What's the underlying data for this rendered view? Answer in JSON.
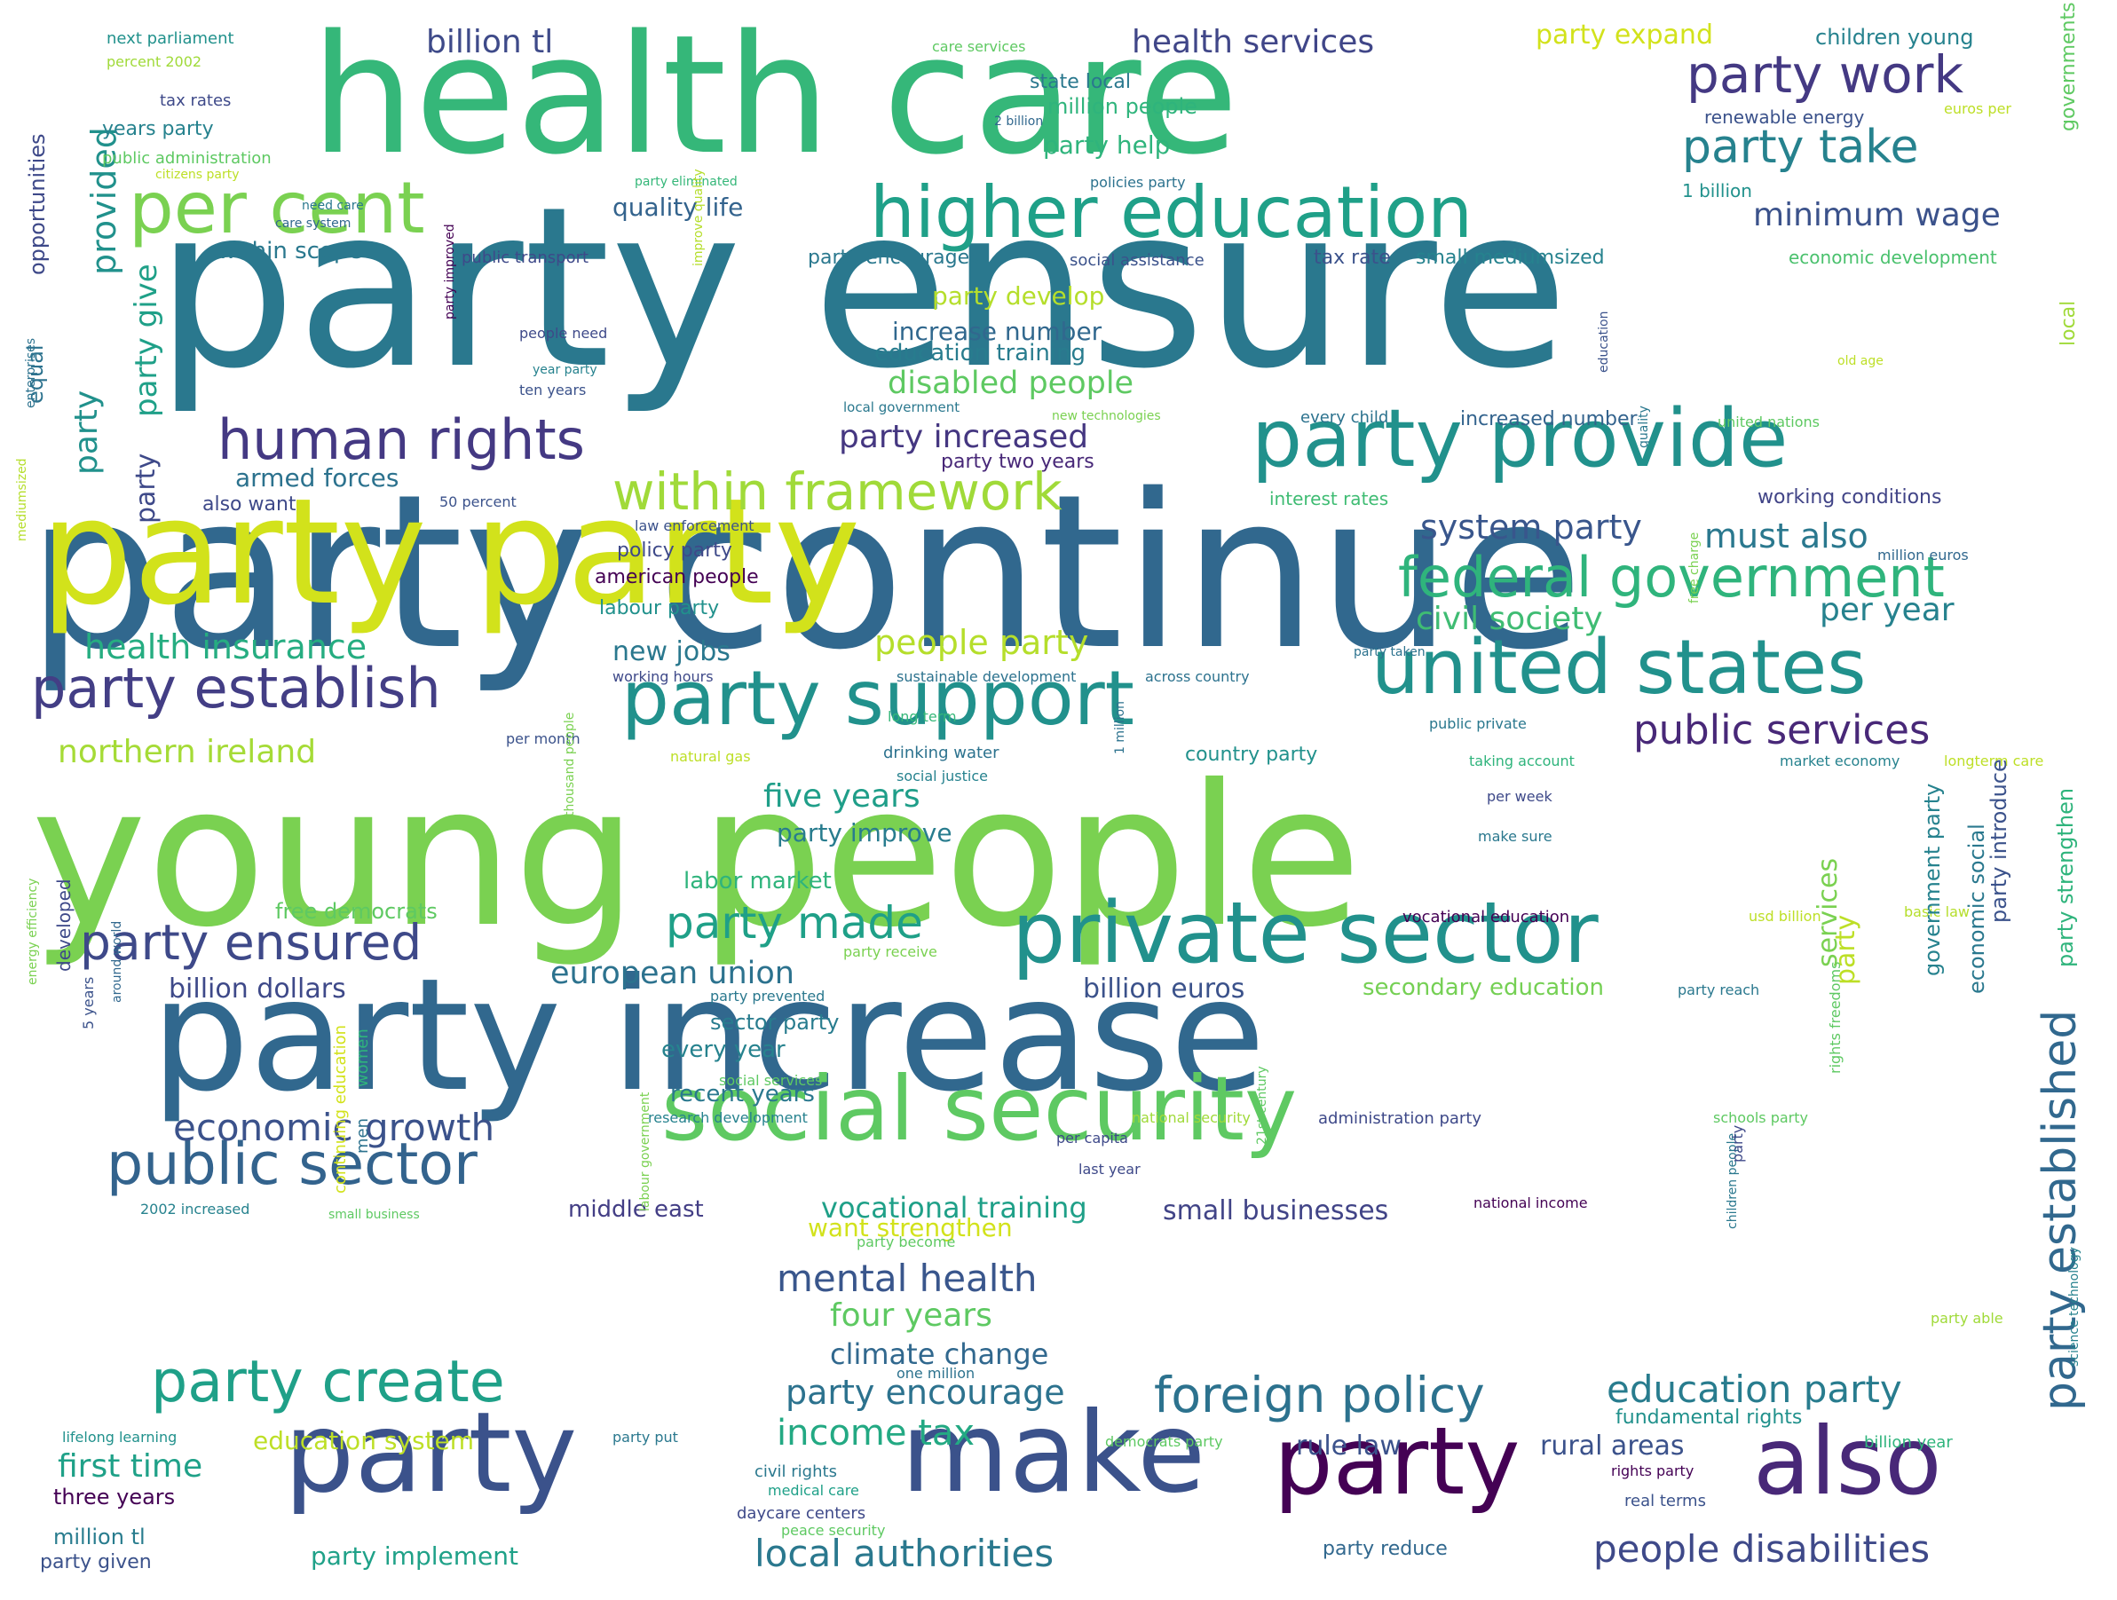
{
  "words": [
    {
      "text": "party ensure",
      "weight": 100,
      "color": "#2a788e"
    },
    {
      "text": "party continue",
      "weight": 96,
      "color": "#31688e"
    },
    {
      "text": "young people",
      "weight": 95,
      "color": "#7ad151"
    },
    {
      "text": "health care",
      "weight": 85,
      "color": "#35b779"
    },
    {
      "text": "party party",
      "weight": 83,
      "color": "#d2e21b"
    },
    {
      "text": "party increase",
      "weight": 82,
      "color": "#31688e"
    },
    {
      "text": "make",
      "weight": 60,
      "color": "#3b528b"
    },
    {
      "text": "party",
      "weight": 58,
      "color": "#3b528b"
    },
    {
      "text": "party",
      "weight": 55,
      "color": "#440154"
    },
    {
      "text": "also",
      "weight": 55,
      "color": "#482878"
    },
    {
      "text": "social security",
      "weight": 50,
      "color": "#5ec962"
    },
    {
      "text": "private sector",
      "weight": 48,
      "color": "#21918c"
    },
    {
      "text": "party provide",
      "weight": 47,
      "color": "#21918c"
    },
    {
      "text": "party support",
      "weight": 47,
      "color": "#21918c"
    },
    {
      "text": "united states",
      "weight": 46,
      "color": "#21918c"
    },
    {
      "text": "higher education",
      "weight": 42,
      "color": "#1fa088"
    },
    {
      "text": "per cent",
      "weight": 42,
      "color": "#7ad151"
    },
    {
      "text": "public sector",
      "weight": 34,
      "color": "#33638d"
    },
    {
      "text": "party create",
      "weight": 33,
      "color": "#1fa088"
    },
    {
      "text": "human rights",
      "weight": 33,
      "color": "#443983"
    },
    {
      "text": "party establish",
      "weight": 33,
      "color": "#433e85"
    },
    {
      "text": "party ensured",
      "weight": 30,
      "color": "#3e4989"
    },
    {
      "text": "within framework",
      "weight": 30,
      "color": "#a0da39"
    },
    {
      "text": "federal government",
      "weight": 30,
      "color": "#2fb47c"
    },
    {
      "text": "party work",
      "weight": 28,
      "color": "#443983"
    },
    {
      "text": "foreign policy",
      "weight": 28,
      "color": "#2c728e"
    },
    {
      "text": "party take",
      "weight": 27,
      "color": "#26828e"
    },
    {
      "text": "party made",
      "weight": 26,
      "color": "#1fa088"
    },
    {
      "text": "party established",
      "weight": 26,
      "color": "#31688e"
    },
    {
      "text": "public services",
      "weight": 26,
      "color": "#482878"
    },
    {
      "text": "economic growth",
      "weight": 24,
      "color": "#3b528b"
    },
    {
      "text": "mental health",
      "weight": 22,
      "color": "#39568c"
    },
    {
      "text": "local authorities",
      "weight": 22,
      "color": "#2a788e"
    },
    {
      "text": "education party",
      "weight": 22,
      "color": "#287c8e"
    },
    {
      "text": "people disabilities",
      "weight": 22,
      "color": "#3e4989"
    },
    {
      "text": "income tax",
      "weight": 21,
      "color": "#23a983"
    },
    {
      "text": "party encourage",
      "weight": 20,
      "color": "#2c728e"
    },
    {
      "text": "people party",
      "weight": 20,
      "color": "#b5de2b"
    },
    {
      "text": "must also",
      "weight": 20,
      "color": "#2a788e"
    },
    {
      "text": "health insurance",
      "weight": 20,
      "color": "#26ad81"
    },
    {
      "text": "system party",
      "weight": 19,
      "color": "#39568c"
    },
    {
      "text": "five years",
      "weight": 19,
      "color": "#1f9e89"
    },
    {
      "text": "four years",
      "weight": 19,
      "color": "#5ec962"
    },
    {
      "text": "civil society",
      "weight": 19,
      "color": "#3fbc73"
    },
    {
      "text": "northern ireland",
      "weight": 19,
      "color": "#a5db36"
    },
    {
      "text": "european union",
      "weight": 18,
      "color": "#2c728e"
    },
    {
      "text": "disabled people",
      "weight": 18,
      "color": "#5ec962"
    },
    {
      "text": "party increased",
      "weight": 18,
      "color": "#453781"
    },
    {
      "text": "billion tl",
      "weight": 18,
      "color": "#3e4a89"
    },
    {
      "text": "health services",
      "weight": 18,
      "color": "#404688"
    },
    {
      "text": "minimum wage",
      "weight": 18,
      "color": "#3b528b"
    },
    {
      "text": "per year",
      "weight": 18,
      "color": "#26828e"
    },
    {
      "text": "first time",
      "weight": 18,
      "color": "#1fa188"
    },
    {
      "text": "climate change",
      "weight": 16,
      "color": "#31688e"
    },
    {
      "text": "vocational training",
      "weight": 16,
      "color": "#1fa088"
    },
    {
      "text": "billion euros",
      "weight": 16,
      "color": "#3b528b"
    },
    {
      "text": "billion dollars",
      "weight": 15,
      "color": "#3e4989"
    },
    {
      "text": "small businesses",
      "weight": 15,
      "color": "#414487"
    },
    {
      "text": "rural areas",
      "weight": 15,
      "color": "#3b528b"
    },
    {
      "text": "rule law",
      "weight": 15,
      "color": "#3b528b"
    },
    {
      "text": "new jobs",
      "weight": 15,
      "color": "#2a788e"
    },
    {
      "text": "armed forces",
      "weight": 14,
      "color": "#2c728e"
    },
    {
      "text": "quality life",
      "weight": 14,
      "color": "#33638d"
    },
    {
      "text": "party expand",
      "weight": 14,
      "color": "#d2e21b"
    },
    {
      "text": "children young",
      "weight": 13,
      "color": "#26828e"
    },
    {
      "text": "party help",
      "weight": 13,
      "color": "#2fb47c"
    },
    {
      "text": "party develop",
      "weight": 13,
      "color": "#b5de2b"
    },
    {
      "text": "increase number",
      "weight": 13,
      "color": "#31688e"
    },
    {
      "text": "education training",
      "weight": 13,
      "color": "#287c8e"
    },
    {
      "text": "party give",
      "weight": 14,
      "color": "#1fa088"
    },
    {
      "text": "party",
      "weight": 14,
      "color": "#21918c"
    },
    {
      "text": "party",
      "weight": 13,
      "color": "#3e4989"
    },
    {
      "text": "provided",
      "weight": 16,
      "color": "#21918c"
    },
    {
      "text": "equal",
      "weight": 12,
      "color": "#2c728e"
    },
    {
      "text": "opportunities",
      "weight": 12,
      "color": "#3e4989"
    },
    {
      "text": "party improve",
      "weight": 13,
      "color": "#287c8e"
    },
    {
      "text": "labor market",
      "weight": 12,
      "color": "#2fb47c"
    },
    {
      "text": "free democrats",
      "weight": 11,
      "color": "#5ec962"
    },
    {
      "text": "middle east",
      "weight": 12,
      "color": "#433e85"
    },
    {
      "text": "want strengthen",
      "weight": 13,
      "color": "#d2e21b"
    },
    {
      "text": "secondary education",
      "weight": 12,
      "color": "#75d054"
    },
    {
      "text": "every year",
      "weight": 12,
      "color": "#26828e"
    },
    {
      "text": "recent years",
      "weight": 12,
      "color": "#2a788e"
    },
    {
      "text": "sector party",
      "weight": 11,
      "color": "#287c8e"
    },
    {
      "text": "party implement",
      "weight": 12,
      "color": "#1fa188"
    },
    {
      "text": "education system",
      "weight": 12,
      "color": "#bddf26"
    },
    {
      "text": "three years",
      "weight": 11,
      "color": "#440154"
    },
    {
      "text": "million tl",
      "weight": 11,
      "color": "#287c8e"
    },
    {
      "text": "party given",
      "weight": 10,
      "color": "#3b528b"
    },
    {
      "text": "party reduce",
      "weight": 10,
      "color": "#31688e"
    },
    {
      "text": "working conditions",
      "weight": 10,
      "color": "#414487"
    },
    {
      "text": "interest rates",
      "weight": 9,
      "color": "#3fbc73"
    },
    {
      "text": "million people",
      "weight": 10,
      "color": "#2fb47c"
    },
    {
      "text": "state local",
      "weight": 10,
      "color": "#2a788e"
    },
    {
      "text": "renewable energy",
      "weight": 9,
      "color": "#3b528b"
    },
    {
      "text": "tax rate",
      "weight": 10,
      "color": "#3b528b"
    },
    {
      "text": "small mediumsized",
      "weight": 10,
      "color": "#26828e"
    },
    {
      "text": "economic development",
      "weight": 9,
      "color": "#4ac16d"
    },
    {
      "text": "party encouraged",
      "weight": 10,
      "color": "#2a788e"
    },
    {
      "text": "within scope",
      "weight": 10,
      "color": "#2a788e"
    },
    {
      "text": "years party",
      "weight": 10,
      "color": "#26828e"
    },
    {
      "text": "tax rates",
      "weight": 8,
      "color": "#3e4989"
    },
    {
      "text": "next parliament",
      "weight": 8,
      "color": "#21918c"
    },
    {
      "text": "percent 2002",
      "weight": 8,
      "color": "#a0da39"
    },
    {
      "text": "public administration",
      "weight": 8,
      "color": "#5ec962"
    },
    {
      "text": "citizens party",
      "weight": 7,
      "color": "#bddf26"
    },
    {
      "text": "need care",
      "weight": 7,
      "color": "#2a788e"
    },
    {
      "text": "care system",
      "weight": 7,
      "color": "#31688e"
    },
    {
      "text": "party eliminated",
      "weight": 7,
      "color": "#35b779"
    },
    {
      "text": "policies party",
      "weight": 7,
      "color": "#2c728e"
    },
    {
      "text": "public transport",
      "weight": 8,
      "color": "#3e4989"
    },
    {
      "text": "social assistance",
      "weight": 8,
      "color": "#3b528b"
    },
    {
      "text": "1 billion",
      "weight": 9,
      "color": "#21918c"
    },
    {
      "text": "governments",
      "weight": 9,
      "color": "#5ec962"
    },
    {
      "text": "local",
      "weight": 9,
      "color": "#a0da39"
    },
    {
      "text": "old age",
      "weight": 7,
      "color": "#bddf26"
    },
    {
      "text": "people need",
      "weight": 7,
      "color": "#3e4989"
    },
    {
      "text": "year party",
      "weight": 7,
      "color": "#26828e"
    },
    {
      "text": "ten years",
      "weight": 7,
      "color": "#3b528b"
    },
    {
      "text": "local government",
      "weight": 7,
      "color": "#2a788e"
    },
    {
      "text": "new technologies",
      "weight": 7,
      "color": "#7ad151"
    },
    {
      "text": "every child",
      "weight": 8,
      "color": "#2c728e"
    },
    {
      "text": "increased number",
      "weight": 9,
      "color": "#33638d"
    },
    {
      "text": "united nations",
      "weight": 7,
      "color": "#5ec962"
    },
    {
      "text": "also want",
      "weight": 9,
      "color": "#3e4989"
    },
    {
      "text": "50 percent",
      "weight": 7,
      "color": "#3b528b"
    },
    {
      "text": "law enforcement",
      "weight": 7,
      "color": "#3b528b"
    },
    {
      "text": "policy party",
      "weight": 9,
      "color": "#3e4989"
    },
    {
      "text": "american people",
      "weight": 9,
      "color": "#440154"
    },
    {
      "text": "labour party",
      "weight": 9,
      "color": "#21918c"
    },
    {
      "text": "working hours",
      "weight": 7,
      "color": "#3e4989"
    },
    {
      "text": "sustainable development",
      "weight": 7,
      "color": "#2c728e"
    },
    {
      "text": "across country",
      "weight": 7,
      "color": "#2c728e"
    },
    {
      "text": "long term",
      "weight": 7,
      "color": "#35b779"
    },
    {
      "text": "per month",
      "weight": 7,
      "color": "#3b528b"
    },
    {
      "text": "natural gas",
      "weight": 7,
      "color": "#bddf26"
    },
    {
      "text": "drinking water",
      "weight": 8,
      "color": "#2c728e"
    },
    {
      "text": "social justice",
      "weight": 7,
      "color": "#26828e"
    },
    {
      "text": "country party",
      "weight": 9,
      "color": "#21918c"
    },
    {
      "text": "public private",
      "weight": 7,
      "color": "#2a788e"
    },
    {
      "text": "taking account",
      "weight": 7,
      "color": "#2fb47c"
    },
    {
      "text": "market economy",
      "weight": 7,
      "color": "#26828e"
    },
    {
      "text": "longterm care",
      "weight": 7,
      "color": "#bddf26"
    },
    {
      "text": "per week",
      "weight": 7,
      "color": "#3e4989"
    },
    {
      "text": "make sure",
      "weight": 7,
      "color": "#2a788e"
    },
    {
      "text": "party taken",
      "weight": 7,
      "color": "#2c728e"
    },
    {
      "text": "million euros",
      "weight": 7,
      "color": "#31688e"
    },
    {
      "text": "vocational education",
      "weight": 8,
      "color": "#440154"
    },
    {
      "text": "usd billion",
      "weight": 7,
      "color": "#bddf26"
    },
    {
      "text": "basic law",
      "weight": 7,
      "color": "#b5de2b"
    },
    {
      "text": "party receive",
      "weight": 7,
      "color": "#7ad151"
    },
    {
      "text": "party prevented",
      "weight": 7,
      "color": "#2a788e"
    },
    {
      "text": "party reach",
      "weight": 7,
      "color": "#2a788e"
    },
    {
      "text": "social services",
      "weight": 7,
      "color": "#5ec962"
    },
    {
      "text": "research development",
      "weight": 7,
      "color": "#26828e"
    },
    {
      "text": "national security",
      "weight": 7,
      "color": "#a0da39"
    },
    {
      "text": "administration party",
      "weight": 8,
      "color": "#3e4989"
    },
    {
      "text": "schools party",
      "weight": 7,
      "color": "#5ec962"
    },
    {
      "text": "per capita",
      "weight": 7,
      "color": "#3e4989"
    },
    {
      "text": "last year",
      "weight": 7,
      "color": "#3e4989"
    },
    {
      "text": "national income",
      "weight": 7,
      "color": "#440154"
    },
    {
      "text": "2002 increased",
      "weight": 7,
      "color": "#26828e"
    },
    {
      "text": "small business",
      "weight": 6,
      "color": "#5ec962"
    },
    {
      "text": "party become",
      "weight": 7,
      "color": "#5ec962"
    },
    {
      "text": "one million",
      "weight": 7,
      "color": "#2c728e"
    },
    {
      "text": "fundamental rights",
      "weight": 8,
      "color": "#21918c"
    },
    {
      "text": "billion year",
      "weight": 7,
      "color": "#2fb47c"
    },
    {
      "text": "lifelong learning",
      "weight": 7,
      "color": "#21918c"
    },
    {
      "text": "party put",
      "weight": 7,
      "color": "#2a788e"
    },
    {
      "text": "democrats party",
      "weight": 7,
      "color": "#5ec962"
    },
    {
      "text": "civil rights",
      "weight": 8,
      "color": "#2a788e"
    },
    {
      "text": "medical care",
      "weight": 7,
      "color": "#1fa088"
    },
    {
      "text": "daycare centers",
      "weight": 8,
      "color": "#3e4989"
    },
    {
      "text": "peace security",
      "weight": 7,
      "color": "#5ec962"
    },
    {
      "text": "rights party",
      "weight": 7,
      "color": "#440154"
    },
    {
      "text": "real terms",
      "weight": 8,
      "color": "#3b528b"
    },
    {
      "text": "party able",
      "weight": 7,
      "color": "#a0da39"
    },
    {
      "text": "care services",
      "weight": 7,
      "color": "#5ec962"
    },
    {
      "text": "euros per",
      "weight": 7,
      "color": "#bddf26"
    },
    {
      "text": "2 billion",
      "weight": 6,
      "color": "#31688e"
    },
    {
      "text": "party improved",
      "weight": 7,
      "color": "#440154"
    },
    {
      "text": "improve quality",
      "weight": 6,
      "color": "#b5de2b"
    },
    {
      "text": "enterprises",
      "weight": 6,
      "color": "#2c728e"
    },
    {
      "text": "mediumsized",
      "weight": 6,
      "color": "#b5de2b"
    },
    {
      "text": "energy efficiency",
      "weight": 6,
      "color": "#7ad151"
    },
    {
      "text": "5 years",
      "weight": 7,
      "color": "#3b528b"
    },
    {
      "text": "around world",
      "weight": 6,
      "color": "#31688e"
    },
    {
      "text": "developed",
      "weight": 9,
      "color": "#3e4989"
    },
    {
      "text": "women",
      "weight": 8,
      "color": "#2fb47c"
    },
    {
      "text": "men",
      "weight": 8,
      "color": "#2c728e"
    },
    {
      "text": "continuing education",
      "weight": 8,
      "color": "#d2e21b"
    },
    {
      "text": "labour government",
      "weight": 6,
      "color": "#7ad151"
    },
    {
      "text": "thousand people",
      "weight": 6,
      "color": "#7ad151"
    },
    {
      "text": "21st century",
      "weight": 6,
      "color": "#5ec962"
    },
    {
      "text": "1 million",
      "weight": 6,
      "color": "#2c728e"
    },
    {
      "text": "children people",
      "weight": 6,
      "color": "#2a788e"
    },
    {
      "text": "party",
      "weight": 7,
      "color": "#3e4989"
    },
    {
      "text": "rights freedoms",
      "weight": 7,
      "color": "#5ec962"
    },
    {
      "text": "services",
      "weight": 13,
      "color": "#7ad151"
    },
    {
      "text": "party",
      "weight": 12,
      "color": "#bddf26"
    },
    {
      "text": "government party",
      "weight": 11,
      "color": "#26828e"
    },
    {
      "text": "party introduce",
      "weight": 11,
      "color": "#3b528b"
    },
    {
      "text": "economic social",
      "weight": 11,
      "color": "#2a788e"
    },
    {
      "text": "party strengthen",
      "weight": 11,
      "color": "#2fb47c"
    },
    {
      "text": "science technology",
      "weight": 6,
      "color": "#26828e"
    },
    {
      "text": "free charge",
      "weight": 6,
      "color": "#7ad151"
    },
    {
      "text": "quality",
      "weight": 6,
      "color": "#2a788e"
    },
    {
      "text": "education",
      "weight": 6,
      "color": "#3b528b"
    },
    {
      "text": "party two years",
      "weight": 10,
      "color": "#482878"
    }
  ]
}
